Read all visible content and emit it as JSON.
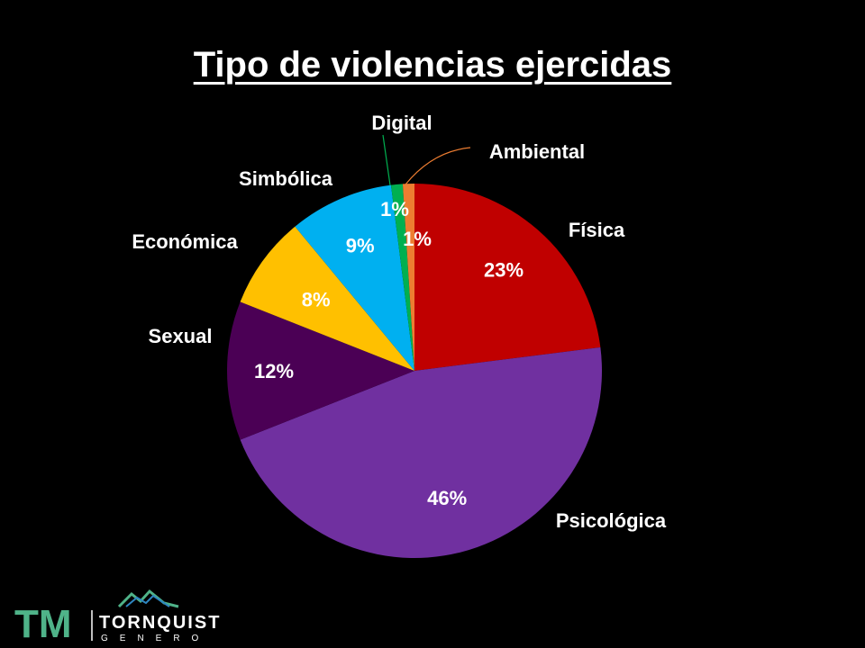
{
  "chart_data": {
    "type": "pie",
    "title": "Tipo de violencias ejercidas",
    "slices": [
      {
        "label": "Física",
        "value": 23,
        "value_label": "23%",
        "color": "#C00000"
      },
      {
        "label": "Psicológica",
        "value": 46,
        "value_label": "46%",
        "color": "#7030A0"
      },
      {
        "label": "Sexual",
        "value": 12,
        "value_label": "12%",
        "color": "#4B0055"
      },
      {
        "label": "Económica",
        "value": 8,
        "value_label": "8%",
        "color": "#FFC000"
      },
      {
        "label": "Simbólica",
        "value": 9,
        "value_label": "9%",
        "color": "#00B0F0"
      },
      {
        "label": "Digital",
        "value": 1,
        "value_label": "1%",
        "color": "#00B050"
      },
      {
        "label": "Ambiental",
        "value": 1,
        "value_label": "1%",
        "color": "#ED7D31"
      }
    ]
  },
  "logo": {
    "initials": "TM",
    "name": "TORNQUIST",
    "subtitle": "GENERO",
    "colors": {
      "teal": "#4FB389",
      "dark_green": "#2E7D4F",
      "blue": "#2E86C1",
      "white": "#FFFFFF"
    }
  }
}
